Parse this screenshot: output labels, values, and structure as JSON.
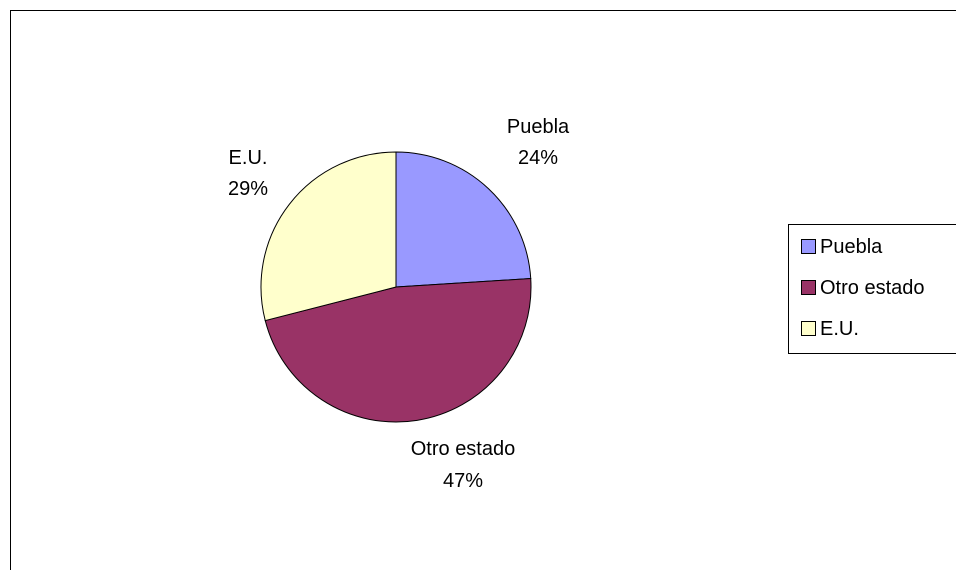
{
  "chart_data": {
    "type": "pie",
    "title": "",
    "slices": [
      {
        "label": "Puebla",
        "percent_label": "24%",
        "value": 24,
        "color": "#9999FF"
      },
      {
        "label": "Otro estado",
        "percent_label": "47%",
        "value": 47,
        "color": "#993366"
      },
      {
        "label": "E.U.",
        "percent_label": "29%",
        "value": 29,
        "color": "#FFFFCC"
      }
    ],
    "legend": {
      "position": "right",
      "items": [
        "Puebla",
        "Otro estado",
        "E.U."
      ]
    }
  }
}
